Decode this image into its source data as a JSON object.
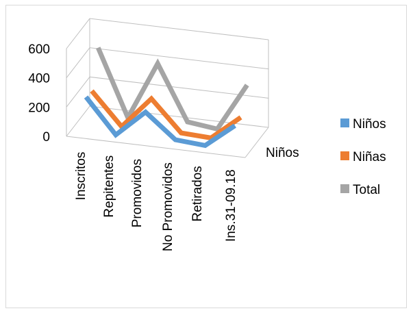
{
  "chart_data": {
    "type": "line",
    "style": "3d-line",
    "categories": [
      "Inscritos",
      "Repitentes",
      "Promovidos",
      "No Promovidos",
      "Retirados",
      "Ins.31-09.18"
    ],
    "series": [
      {
        "name": "Niños",
        "color": "#5B9BD5",
        "values": [
          240,
          5,
          185,
          20,
          5,
          165
        ]
      },
      {
        "name": "Niñas",
        "color": "#ED7D31",
        "values": [
          230,
          10,
          225,
          15,
          5,
          170
        ]
      },
      {
        "name": "Total",
        "color": "#A5A5A5",
        "values": [
          470,
          15,
          410,
          35,
          10,
          335
        ]
      }
    ],
    "y_ticks": [
      "0",
      "200",
      "400",
      "600"
    ],
    "ylim": [
      0,
      600
    ],
    "depth_label": "Niños",
    "legend_position": "right",
    "grid": true
  }
}
